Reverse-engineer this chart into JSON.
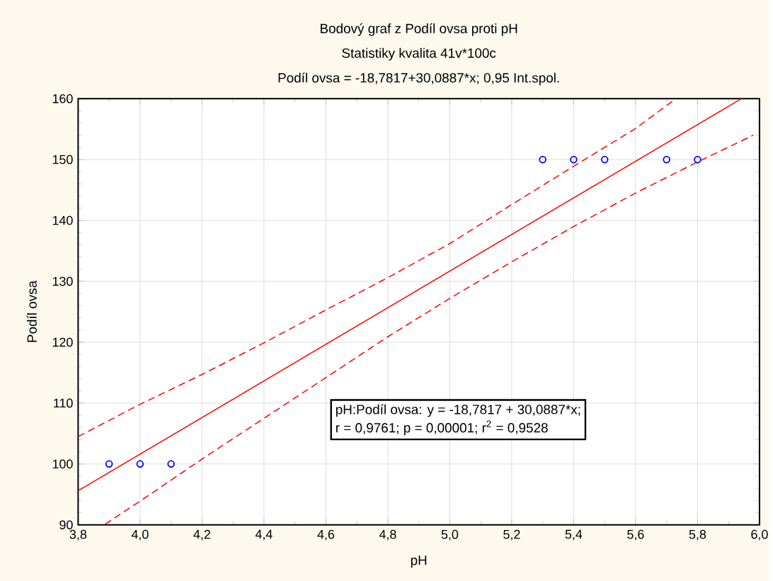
{
  "chart_data": {
    "type": "scatter",
    "title": "Bodový graf z Podíl ovsa proti pH",
    "subtitle": "Statistiky kvalita 41v*100c",
    "xlabel": "pH",
    "ylabel": "Podíl ovsa",
    "annotations": [
      "Podíl ovsa = -18,7817+30,0887*x; 0,95 Int.spol.",
      "pH:Podíl ovsa: y = -18,7817 + 30,0887*x;",
      "r = 0,9761; p = 0,00001; r$^{2}$ = 0,9528"
    ],
    "series": [
      {
        "color": "#0000ff",
        "marker": "circle",
        "x": [
          3.9,
          4.0,
          4.1,
          5.3,
          5.4,
          5.5,
          5.7,
          5.8
        ],
        "values": [
          100,
          100,
          100,
          150,
          150,
          150,
          150,
          150
        ]
      },
      {
        "type": "line",
        "color": "#ff0000",
        "marker": "none",
        "line_style": "solid",
        "x": [
          3.8,
          5.942
        ],
        "values": [
          95.6,
          160
        ]
      },
      {
        "type": "line",
        "color": "#ff0000",
        "marker": "none",
        "line_style": "dashed",
        "x": [
          3.8,
          4.0,
          4.2,
          4.4,
          4.6,
          4.8,
          5.0,
          5.2,
          5.4,
          5.6,
          5.73
        ],
        "values": [
          104.5,
          109.8,
          114.7,
          119.9,
          125.3,
          130.6,
          136.2,
          142.6,
          148.9,
          155.1,
          160
        ]
      },
      {
        "type": "line",
        "color": "#ff0000",
        "marker": "none",
        "line_style": "dashed",
        "x": [
          3.887,
          4.0,
          4.2,
          4.4,
          4.6,
          4.8,
          5.0,
          5.2,
          5.4,
          5.6,
          5.8,
          5.98
        ],
        "values": [
          90.1,
          93.9,
          100.8,
          107.5,
          114.2,
          120.9,
          127.2,
          133.2,
          139.0,
          144.5,
          149.6,
          154.0
        ]
      }
    ],
    "xlim": [
      3.8,
      6.0
    ],
    "ylim": [
      90,
      160
    ],
    "xticks": [
      {
        "value": 3.8,
        "label": "3,8"
      },
      {
        "value": 4.0,
        "label": "4,0"
      },
      {
        "value": 4.2,
        "label": "4,2"
      },
      {
        "value": 4.4,
        "label": "4,4"
      },
      {
        "value": 4.6,
        "label": "4,6"
      },
      {
        "value": 4.8,
        "label": "4,8"
      },
      {
        "value": 5.0,
        "label": "5,0"
      },
      {
        "value": 5.2,
        "label": "5,2"
      },
      {
        "value": 5.4,
        "label": "5,4"
      },
      {
        "value": 5.6,
        "label": "5,6"
      },
      {
        "value": 5.8,
        "label": "5,8"
      },
      {
        "value": 6.0,
        "label": "6,0"
      }
    ],
    "yticks": [
      90,
      100,
      110,
      120,
      130,
      140,
      150,
      160
    ],
    "grid": true
  }
}
